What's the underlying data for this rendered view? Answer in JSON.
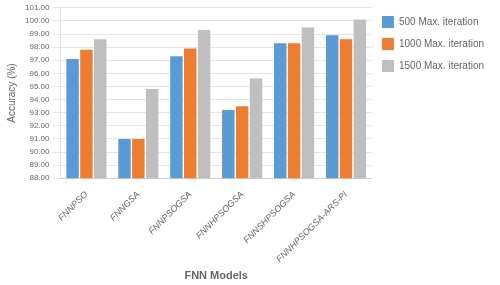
{
  "chart_data": {
    "type": "bar",
    "categories": [
      "FNNPSO",
      "FNNGSA",
      "FNNPSOGSA",
      "FNNHPSOGSA",
      "FNNSHPSOGSA",
      "FNNHPSOGSA-ARS-PI"
    ],
    "series": [
      {
        "name": "500 Max. iteration",
        "color": "#5B9BD5",
        "values": [
          97.1,
          91.0,
          97.3,
          93.2,
          98.3,
          98.9
        ]
      },
      {
        "name": "1000 Max. iteration",
        "color": "#ED7D31",
        "values": [
          97.8,
          91.0,
          97.9,
          93.5,
          98.3,
          98.6
        ]
      },
      {
        "name": "1500 Max. iteration",
        "color": "#BFBFBF",
        "values": [
          98.6,
          94.8,
          99.3,
          95.6,
          99.5,
          100.1
        ]
      }
    ],
    "xlabel": "FNN Models",
    "ylabel": "Accuracy (%)",
    "ylim": [
      88.0,
      101.0
    ],
    "yticks": [
      {
        "value": 88.0,
        "label": "88.00"
      },
      {
        "value": 89.0,
        "label": "89.00"
      },
      {
        "value": 90.0,
        "label": "90.00"
      },
      {
        "value": 91.0,
        "label": "91.00"
      },
      {
        "value": 92.0,
        "label": "92.00"
      },
      {
        "value": 93.0,
        "label": "93.00"
      },
      {
        "value": 94.0,
        "label": "94.00"
      },
      {
        "value": 95.0,
        "label": "95.00"
      },
      {
        "value": 96.0,
        "label": "96.00"
      },
      {
        "value": 97.0,
        "label": "97.00"
      },
      {
        "value": 98.0,
        "label": "98.00"
      },
      {
        "value": 99.0,
        "label": "99.00"
      },
      {
        "value": 100.0,
        "label": "100.00"
      },
      {
        "value": 101.0,
        "label": "101.00"
      }
    ],
    "grid": true,
    "legend": "right"
  }
}
